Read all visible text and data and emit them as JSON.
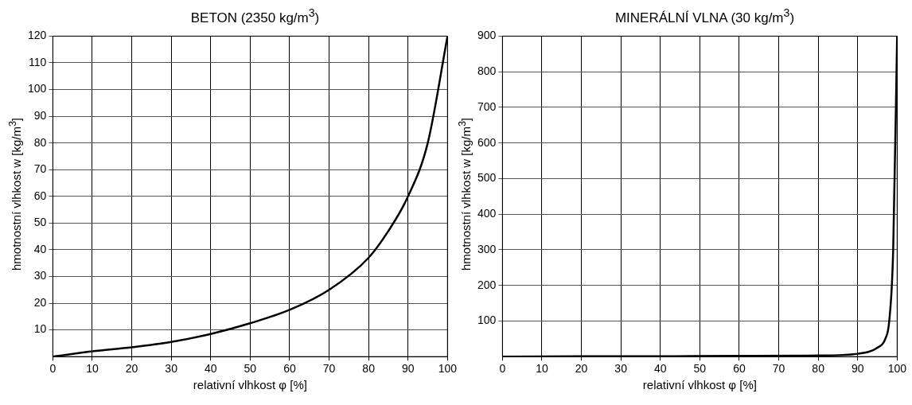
{
  "chart_data": [
    {
      "type": "line",
      "title": "BETON (2350 kg/m$^{3}$)",
      "xlabel": "relativní vlhkost φ [%]",
      "ylabel": "hmotnostní vlhkost w [kg/m$^{3}$]",
      "x": [
        0,
        10,
        20,
        30,
        40,
        50,
        60,
        70,
        80,
        85,
        90,
        95,
        100
      ],
      "series": [
        {
          "color": "#000000",
          "values": [
            0,
            2,
            3.5,
            5.5,
            8.5,
            12.5,
            17.5,
            25,
            37,
            47,
            60,
            80,
            120
          ]
        }
      ],
      "xlim": [
        0,
        100
      ],
      "xticks": [
        0,
        10,
        20,
        30,
        40,
        50,
        60,
        70,
        80,
        90,
        100
      ],
      "ylim": [
        0,
        120
      ],
      "yticks": [
        10,
        20,
        30,
        40,
        50,
        60,
        70,
        80,
        90,
        100,
        110,
        120
      ],
      "grid": true,
      "legend": false,
      "marker": "none"
    },
    {
      "type": "line",
      "title": "MINERÁLNÍ VLNA (30 kg/m$^{3}$)",
      "xlabel": "relativní vlhkost φ [%]",
      "ylabel": "hmotnostní vlhkost w [kg/m$^{3}$]",
      "x": [
        0,
        20,
        40,
        60,
        80,
        90,
        95,
        97,
        98,
        99,
        100
      ],
      "series": [
        {
          "color": "#000000",
          "values": [
            0,
            1,
            1,
            2,
            3,
            8,
            25,
            50,
            100,
            300,
            900
          ]
        }
      ],
      "xlim": [
        0,
        100
      ],
      "xticks": [
        0,
        10,
        20,
        30,
        40,
        50,
        60,
        70,
        80,
        90,
        100
      ],
      "ylim": [
        0,
        900
      ],
      "yticks": [
        100,
        200,
        300,
        400,
        500,
        600,
        700,
        800,
        900
      ],
      "grid": true,
      "legend": false,
      "marker": "none"
    }
  ]
}
